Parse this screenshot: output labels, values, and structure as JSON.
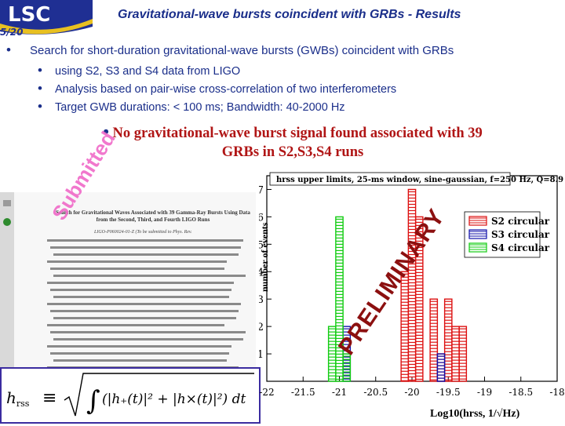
{
  "slide": {
    "title": "Gravitational-wave bursts coincident with GRBs - Results",
    "page_number": "5/20",
    "logo_text": "LSC"
  },
  "bullets": {
    "main": "Search for short-duration gravitational-wave bursts (GWBs) coincident with GRBs",
    "sub": [
      "using S2, S3 and S4 data from LIGO",
      "Analysis based on pair-wise cross-correlation of two interferometers",
      "Target GWB durations: < 100 ms; Bandwidth: 40-2000 Hz"
    ],
    "finding_line1": "No gravitational-wave burst signal found associated with 39",
    "finding_line2": "GRBs in S2,S3,S4 runs"
  },
  "paper": {
    "title": "Search for Gravitational Waves Associated with 39 Gamma-Ray Bursts Using Data from the Second, Third, and Fourth LIGO Runs",
    "id": "LIGO-P060024-01-Z (To be submitted to Phys. Rev.",
    "stamp": "Submitted"
  },
  "formula": {
    "lhs": "h",
    "lhs_sub": "rss",
    "equiv": "≡",
    "body": "(|h₊(t)|² + |h×(t)|²) dt"
  },
  "chart_data": {
    "type": "bar",
    "title": "hrss upper limits, 25-ms window, sine-gaussian, f=250 Hz, Q=8.9",
    "xlabel": "Log10(hrss, 1/√Hz)",
    "ylabel": "number of events",
    "watermark": "PRELIMINARY",
    "xlim": [
      -22,
      -18
    ],
    "ylim": [
      0,
      7.5
    ],
    "xticks": [
      "-22",
      "-21.5",
      "-21",
      "-20.5",
      "-20",
      "-19.5",
      "-19",
      "-18.5",
      "-18"
    ],
    "yticks": [
      "1",
      "2",
      "3",
      "4",
      "5",
      "6",
      "7"
    ],
    "bin_width": 0.1,
    "legend_position": "top-right",
    "series": [
      {
        "name": "S2 circular",
        "color": "#dd1111",
        "bins": [
          {
            "x": -20.1,
            "y": 4
          },
          {
            "x": -20.0,
            "y": 7
          },
          {
            "x": -19.9,
            "y": 6
          },
          {
            "x": -19.7,
            "y": 3
          },
          {
            "x": -19.6,
            "y": 1
          },
          {
            "x": -19.5,
            "y": 3
          },
          {
            "x": -19.4,
            "y": 2
          },
          {
            "x": -19.3,
            "y": 2
          }
        ]
      },
      {
        "name": "S3 circular",
        "color": "#1111aa",
        "bins": [
          {
            "x": -20.9,
            "y": 2
          },
          {
            "x": -19.6,
            "y": 1
          }
        ]
      },
      {
        "name": "S4 circular",
        "color": "#11cc11",
        "bins": [
          {
            "x": -21.1,
            "y": 2
          },
          {
            "x": -21.0,
            "y": 6
          },
          {
            "x": -20.9,
            "y": 1
          }
        ]
      }
    ]
  }
}
